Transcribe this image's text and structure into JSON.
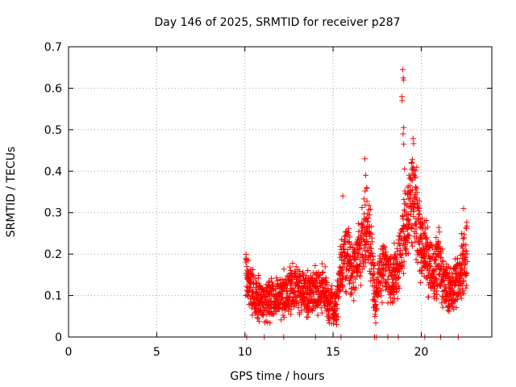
{
  "chart_data": {
    "type": "scatter",
    "title": "Day 146 of 2025, SRMTID for receiver p287",
    "xlabel": "GPS time / hours",
    "ylabel": "SRMTID / TECUs",
    "xlim": [
      0,
      24
    ],
    "ylim": [
      0,
      0.7
    ],
    "x_ticks": [
      0,
      5,
      10,
      15,
      20
    ],
    "x_tick_labels": [
      "0",
      "5",
      "10",
      "15",
      "20"
    ],
    "y_ticks": [
      0,
      0.1,
      0.2,
      0.3,
      0.4,
      0.5,
      0.6,
      0.7
    ],
    "y_tick_labels": [
      "0",
      "0.1",
      "0.2",
      "0.3",
      "0.4",
      "0.5",
      "0.6",
      "0.7"
    ],
    "grid": true,
    "marker": "+",
    "color": "#ff0000",
    "trend": [
      [
        10.05,
        0.15
      ],
      [
        10.3,
        0.13
      ],
      [
        10.6,
        0.1
      ],
      [
        11.0,
        0.09
      ],
      [
        11.5,
        0.09
      ],
      [
        12.0,
        0.1
      ],
      [
        12.5,
        0.11
      ],
      [
        13.0,
        0.12
      ],
      [
        13.5,
        0.1
      ],
      [
        14.0,
        0.11
      ],
      [
        14.5,
        0.12
      ],
      [
        14.8,
        0.08
      ],
      [
        15.2,
        0.07
      ],
      [
        15.5,
        0.18
      ],
      [
        15.8,
        0.2
      ],
      [
        16.2,
        0.16
      ],
      [
        16.6,
        0.22
      ],
      [
        16.9,
        0.26
      ],
      [
        17.2,
        0.2
      ],
      [
        17.4,
        0.08
      ],
      [
        17.7,
        0.16
      ],
      [
        18.0,
        0.17
      ],
      [
        18.3,
        0.14
      ],
      [
        18.6,
        0.16
      ],
      [
        18.9,
        0.22
      ],
      [
        19.2,
        0.28
      ],
      [
        19.5,
        0.35
      ],
      [
        19.7,
        0.3
      ],
      [
        20.0,
        0.22
      ],
      [
        20.3,
        0.19
      ],
      [
        20.7,
        0.16
      ],
      [
        21.0,
        0.18
      ],
      [
        21.3,
        0.12
      ],
      [
        21.7,
        0.11
      ],
      [
        22.0,
        0.14
      ],
      [
        22.3,
        0.17
      ],
      [
        22.6,
        0.22
      ]
    ],
    "peaks": [
      [
        16.8,
        0.43
      ],
      [
        16.85,
        0.39
      ],
      [
        16.9,
        0.36
      ],
      [
        18.95,
        0.645
      ],
      [
        18.98,
        0.625
      ],
      [
        19.0,
        0.62
      ],
      [
        18.9,
        0.58
      ],
      [
        18.92,
        0.57
      ],
      [
        19.0,
        0.505
      ],
      [
        18.97,
        0.49
      ],
      [
        19.0,
        0.465
      ],
      [
        19.05,
        0.405
      ],
      [
        15.55,
        0.34
      ],
      [
        22.4,
        0.31
      ],
      [
        19.6,
        0.39
      ]
    ],
    "zero_marks": [
      10.1,
      11.1,
      12.2,
      14.0,
      15.45,
      17.35,
      17.45,
      18.1,
      18.7,
      20.2,
      21.1,
      22.1
    ]
  }
}
